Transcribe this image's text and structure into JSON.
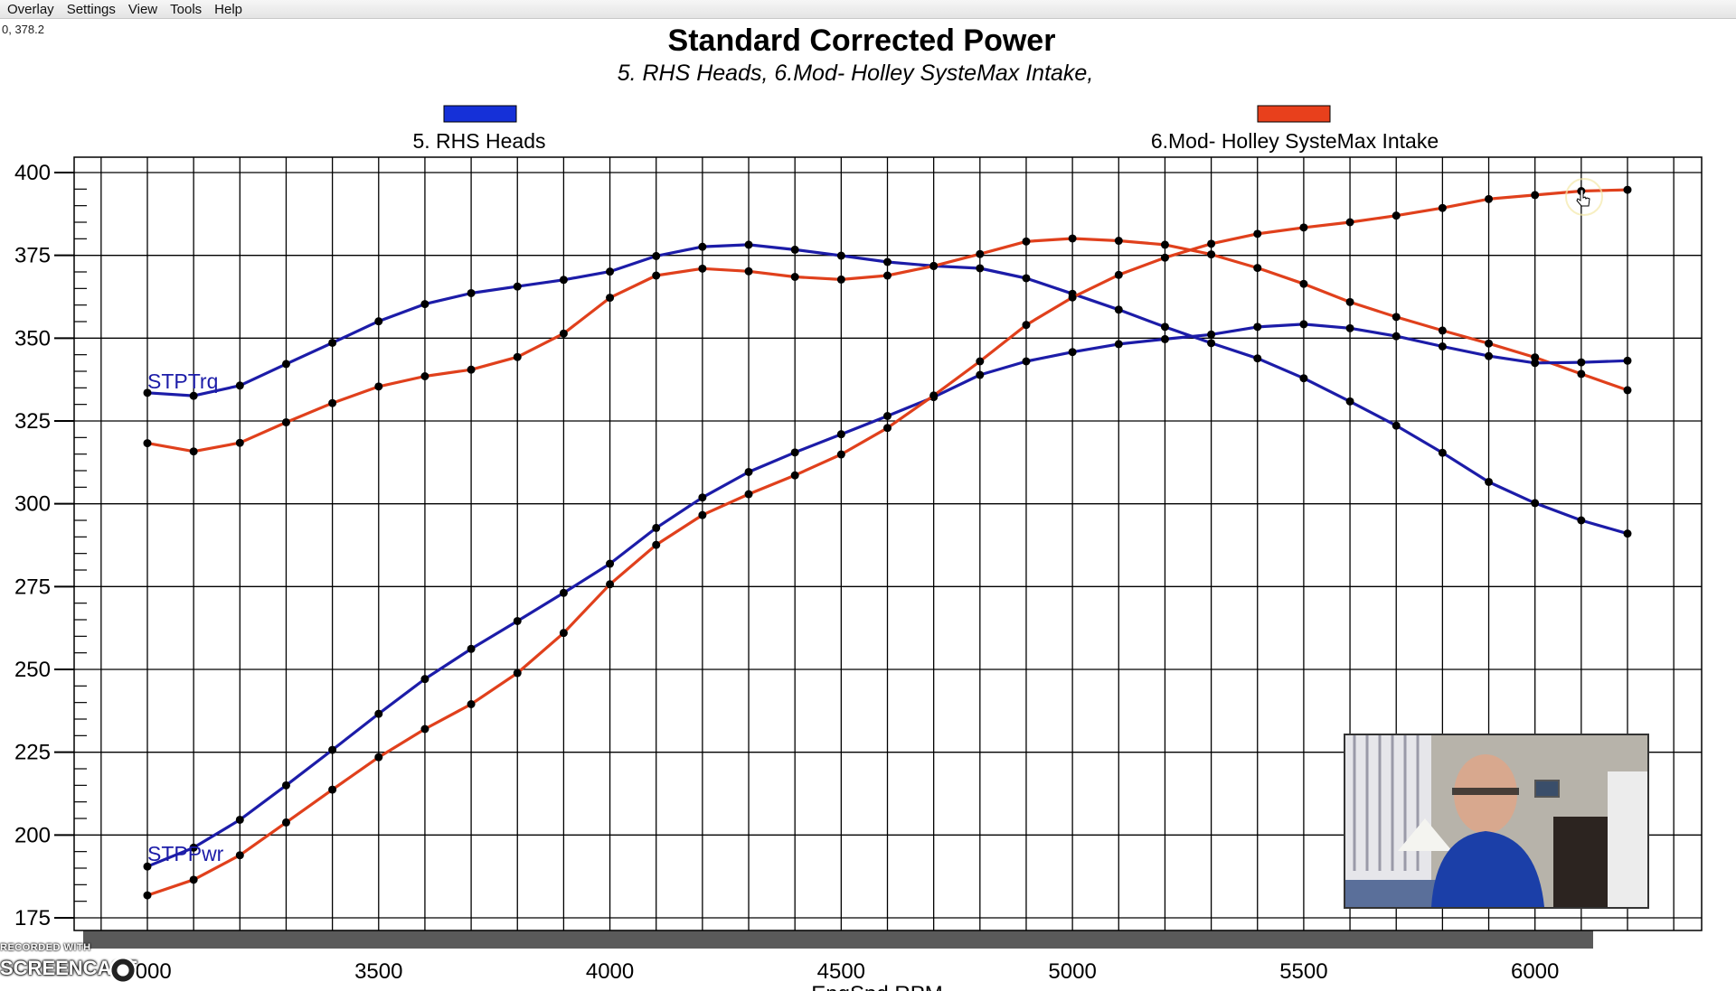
{
  "menu": {
    "items": [
      "Overlay",
      "Settings",
      "View",
      "Tools",
      "Help"
    ]
  },
  "coord_readout": "0, 378.2",
  "colors": {
    "series_blue": "#1c1ca8",
    "series_red": "#e0401c",
    "legend_blue": "#1530d8",
    "legend_red": "#e8401c",
    "grid": "#000000"
  },
  "chart_data": {
    "type": "line",
    "title": "Standard Corrected Power",
    "subtitle": "5. RHS Heads, 6.Mod- Holley SysteMax Intake,",
    "xlabel": "EngSpd RPM",
    "ylabel": "",
    "xlim": [
      3000,
      6200
    ],
    "ylim": [
      175,
      400
    ],
    "x_ticks": [
      3000,
      3500,
      4000,
      4500,
      5000,
      5500,
      6000
    ],
    "y_ticks": [
      175,
      200,
      225,
      250,
      275,
      300,
      325,
      350,
      375,
      400
    ],
    "grid": true,
    "legend": [
      {
        "name": "5. RHS Heads",
        "color": "#1530d8"
      },
      {
        "name": "6.Mod- Holley SysteMax Intake",
        "color": "#e8401c"
      }
    ],
    "curve_labels": {
      "torque": "STPTrq",
      "power": "STPPwr"
    },
    "x": [
      3000,
      3100,
      3200,
      3300,
      3400,
      3500,
      3600,
      3700,
      3800,
      3900,
      4000,
      4100,
      4200,
      4300,
      4400,
      4500,
      4600,
      4700,
      4800,
      4900,
      5000,
      5100,
      5200,
      5300,
      5400,
      5500,
      5600,
      5700,
      5800,
      5900,
      6000,
      6100,
      6200
    ],
    "series": [
      {
        "name": "5. RHS Heads",
        "measure": "STPTrq",
        "color": "#1c1ca8",
        "values": [
          333.5,
          332.6,
          335.7,
          342.2,
          348.6,
          355.1,
          360.3,
          363.6,
          365.6,
          367.6,
          370.1,
          374.8,
          377.6,
          378.2,
          376.7,
          374.9,
          373.0,
          371.8,
          371.1,
          368.1,
          363.4,
          358.6,
          353.4,
          348.5,
          343.9,
          337.9,
          330.9,
          323.6,
          315.4,
          306.6,
          300.2,
          295.0,
          291.0
        ]
      },
      {
        "name": "6.Mod- Holley SysteMax Intake",
        "measure": "STPTrq",
        "color": "#e0401c",
        "values": [
          318.3,
          315.8,
          318.4,
          324.6,
          330.4,
          335.4,
          338.5,
          340.5,
          344.3,
          351.4,
          362.2,
          368.9,
          371.0,
          370.2,
          368.5,
          367.7,
          368.9,
          371.8,
          375.4,
          379.2,
          380.1,
          379.4,
          378.2,
          375.3,
          371.2,
          366.4,
          360.9,
          356.4,
          352.3,
          348.4,
          344.2,
          339.2,
          334.3
        ]
      },
      {
        "name": "5. RHS Heads",
        "measure": "STPPwr",
        "color": "#1c1ca8",
        "values": [
          190.5,
          196.2,
          204.6,
          215.0,
          225.7,
          236.6,
          247.1,
          256.2,
          264.6,
          273.1,
          281.9,
          292.7,
          301.9,
          309.6,
          315.5,
          321.0,
          326.5,
          332.2,
          338.9,
          343.0,
          345.8,
          348.2,
          349.7,
          351.1,
          353.4,
          354.2,
          353.0,
          350.6,
          347.5,
          344.6,
          342.5,
          342.7,
          343.2
        ]
      },
      {
        "name": "6.Mod- Holley SysteMax Intake",
        "measure": "STPPwr",
        "color": "#e0401c",
        "values": [
          181.8,
          186.5,
          193.9,
          203.8,
          213.7,
          223.5,
          232.0,
          239.5,
          248.9,
          261.0,
          275.7,
          287.6,
          296.6,
          302.9,
          308.6,
          314.9,
          322.9,
          332.7,
          343.0,
          354.0,
          362.3,
          369.1,
          374.3,
          378.5,
          381.5,
          383.4,
          385.0,
          387.0,
          389.3,
          392.0,
          393.2,
          394.4,
          394.8
        ]
      }
    ]
  },
  "webcam": {
    "label": "presenter webcam"
  },
  "watermark": {
    "line1": "RECORDED WITH",
    "line2": "SCREENCAST"
  }
}
